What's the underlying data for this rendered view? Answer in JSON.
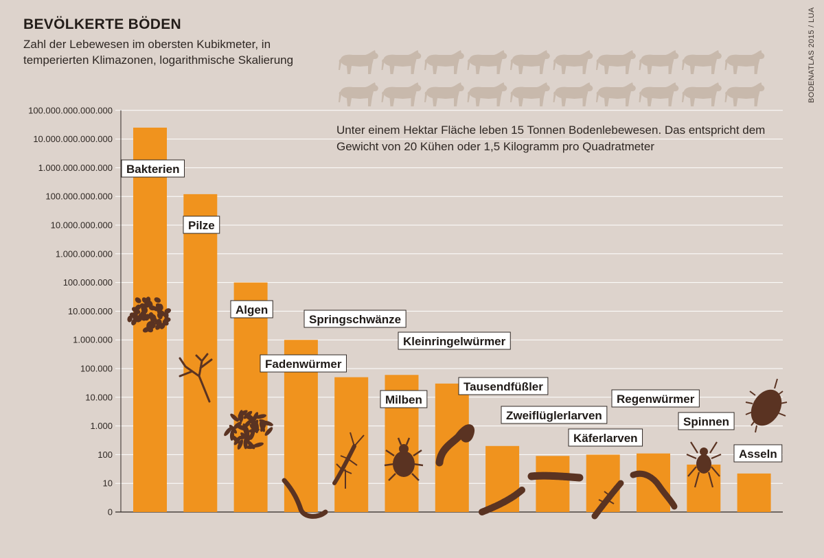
{
  "header": {
    "title": "BEVÖLKERTE BÖDEN",
    "subtitle": "Zahl der Lebewesen im obersten Kubikmeter, in temperierten Klimazonen, logarithmische Skalierung"
  },
  "source": "BODENATLAS 2015 / LUA",
  "annotation": "Unter einem Hektar Fläche leben 15 Tonnen Bodenlebewesen. Das entspricht dem Gewicht von 20 Kühen oder 1,5 Kilogramm pro Quadratmeter",
  "cows": {
    "count": 20,
    "icon": "cow-icon",
    "color": "#c8b9ac"
  },
  "colors": {
    "bar": "#f0931e",
    "grid": "#ffffff",
    "background": "#ddd3cc",
    "organism": "#5a3322"
  },
  "chart_data": {
    "type": "bar",
    "scale": "log",
    "categories": [
      "Bakterien",
      "Pilze",
      "Algen",
      "Fadenwürmer",
      "Springschwänze",
      "Milben",
      "Kleinringelwürmer",
      "Tausendfüßler",
      "Zweiflüglerlarven",
      "Käferlarven",
      "Regenwürmer",
      "Spinnen",
      "Asseln"
    ],
    "values": [
      25000000000000,
      120000000000,
      100000000,
      1000000,
      50000,
      60000,
      30000,
      200,
      90,
      100,
      110,
      45,
      22
    ],
    "ticks": [
      "0",
      "10",
      "100",
      "1.000",
      "10.000",
      "100.000",
      "1.000.000",
      "10.000.000",
      "100.000.000",
      "1.000.000.000",
      "10.000.000.000",
      "100.000.000.000",
      "1.000.000.000.000",
      "10.000.000.000.000",
      "100.000.000.000.000"
    ],
    "ylim": [
      1,
      100000000000000
    ],
    "grid": true,
    "legend": "none",
    "title": "BEVÖLKERTE BÖDEN",
    "xlabel": "",
    "ylabel": ""
  }
}
